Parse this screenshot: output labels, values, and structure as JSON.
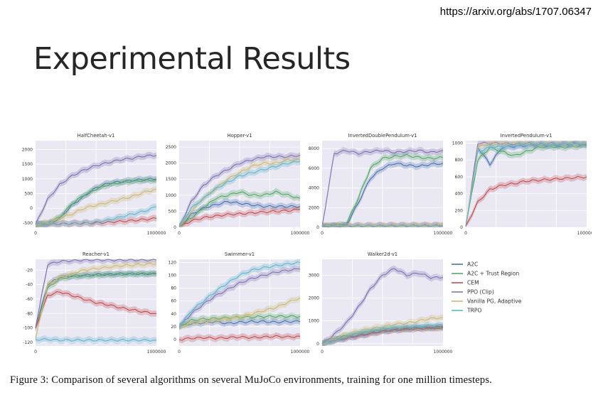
{
  "header": {
    "url": "https://arxiv.org/abs/1707.06347",
    "title": "Experimental Results"
  },
  "caption": {
    "text": "Figure 3: Comparison of several algorithms on several MuJoCo environments, training for one million timesteps."
  },
  "colors": {
    "plot_bg": "#e9e8f3",
    "grid": "#ffffff"
  },
  "chart_data": [
    {
      "type": "line",
      "title": "HalfCheetah-v1",
      "xlim": [
        0,
        1000000
      ],
      "xticks": [
        "0",
        "1000000"
      ],
      "ylim": [
        -650,
        2300
      ],
      "yticks": [
        -500,
        0,
        500,
        1000,
        1500,
        2000
      ],
      "x": [
        0,
        100000,
        200000,
        300000,
        400000,
        500000,
        600000,
        700000,
        800000,
        900000,
        1000000
      ],
      "series": [
        {
          "name": "A2C",
          "values": [
            -550,
            -530,
            -350,
            100,
            400,
            700,
            850,
            900,
            950,
            980,
            990
          ]
        },
        {
          "name": "A2C + Trust Region",
          "values": [
            -550,
            -520,
            -300,
            150,
            450,
            650,
            800,
            870,
            920,
            950,
            960
          ]
        },
        {
          "name": "CEM",
          "values": [
            -550,
            -540,
            -530,
            -520,
            -510,
            -500,
            -480,
            -450,
            -420,
            -380,
            -350
          ]
        },
        {
          "name": "PPO (Clip)",
          "values": [
            -550,
            300,
            800,
            1100,
            1300,
            1450,
            1550,
            1650,
            1700,
            1780,
            1800
          ]
        },
        {
          "name": "Vanilla PG, Adaptive",
          "values": [
            -550,
            -500,
            -350,
            -200,
            0,
            100,
            200,
            300,
            400,
            550,
            650
          ]
        },
        {
          "name": "TRPO",
          "values": [
            -550,
            -540,
            -530,
            -520,
            -500,
            -480,
            -400,
            -300,
            -200,
            -100,
            50
          ]
        }
      ]
    },
    {
      "type": "line",
      "title": "Hopper-v1",
      "xlim": [
        0,
        1000000
      ],
      "xticks": [
        "0",
        "1000000"
      ],
      "ylim": [
        0,
        2700
      ],
      "yticks": [
        0,
        500,
        1000,
        1500,
        2000,
        2500
      ],
      "x": [
        0,
        100000,
        200000,
        300000,
        400000,
        500000,
        600000,
        700000,
        800000,
        900000,
        1000000
      ],
      "series": [
        {
          "name": "A2C",
          "values": [
            20,
            400,
            600,
            700,
            800,
            750,
            700,
            650,
            650,
            650,
            650
          ]
        },
        {
          "name": "A2C + Trust Region",
          "values": [
            20,
            300,
            600,
            900,
            1000,
            1100,
            1000,
            1000,
            1100,
            1000,
            900
          ]
        },
        {
          "name": "CEM",
          "values": [
            20,
            200,
            300,
            350,
            400,
            420,
            450,
            480,
            500,
            520,
            550
          ]
        },
        {
          "name": "PPO (Clip)",
          "values": [
            20,
            800,
            1300,
            1600,
            1800,
            2000,
            2100,
            2200,
            2200,
            2200,
            2250
          ]
        },
        {
          "name": "Vanilla PG, Adaptive",
          "values": [
            20,
            500,
            900,
            1200,
            1500,
            1700,
            1900,
            2000,
            2000,
            2100,
            2100
          ]
        },
        {
          "name": "TRPO",
          "values": [
            20,
            600,
            900,
            1200,
            1400,
            1600,
            1700,
            1800,
            1900,
            2000,
            2050
          ]
        }
      ]
    },
    {
      "type": "line",
      "title": "InvertedDoublePendulum-v1",
      "xlim": [
        0,
        1000000
      ],
      "xticks": [
        "0",
        "1000000"
      ],
      "ylim": [
        0,
        8800
      ],
      "yticks": [
        0,
        2000,
        4000,
        6000,
        8000
      ],
      "x": [
        0,
        100000,
        200000,
        300000,
        400000,
        500000,
        600000,
        700000,
        800000,
        900000,
        1000000
      ],
      "series": [
        {
          "name": "A2C",
          "values": [
            100,
            150,
            200,
            2500,
            5000,
            6000,
            6500,
            6300,
            6200,
            6400,
            6500
          ]
        },
        {
          "name": "A2C + Trust Region",
          "values": [
            100,
            150,
            300,
            3000,
            6000,
            7000,
            7200,
            7300,
            7100,
            7000,
            7100
          ]
        },
        {
          "name": "CEM",
          "values": [
            100,
            150,
            150,
            150,
            160,
            170,
            180,
            180,
            190,
            190,
            200
          ]
        },
        {
          "name": "PPO (Clip)",
          "values": [
            100,
            7500,
            7800,
            7500,
            7700,
            7800,
            7600,
            7700,
            7800,
            7600,
            7800
          ]
        },
        {
          "name": "Vanilla PG, Adaptive",
          "values": [
            100,
            120,
            130,
            140,
            150,
            150,
            160,
            160,
            170,
            170,
            180
          ]
        },
        {
          "name": "TRPO",
          "values": [
            100,
            110,
            120,
            130,
            140,
            140,
            150,
            150,
            150,
            160,
            160
          ]
        }
      ]
    },
    {
      "type": "line",
      "title": "InvertedPendulum-v1",
      "xlim": [
        0,
        1000000
      ],
      "xticks": [
        "0",
        "1000000"
      ],
      "ylim": [
        0,
        1030
      ],
      "yticks": [
        0,
        200,
        400,
        600,
        800,
        1000
      ],
      "x": [
        0,
        100000,
        200000,
        300000,
        400000,
        500000,
        600000,
        700000,
        800000,
        900000,
        1000000
      ],
      "series": [
        {
          "name": "A2C",
          "values": [
            10,
            950,
            750,
            950,
            960,
            970,
            980,
            970,
            980,
            990,
            980
          ]
        },
        {
          "name": "A2C + Trust Region",
          "values": [
            10,
            800,
            950,
            900,
            850,
            900,
            950,
            960,
            950,
            960,
            970
          ]
        },
        {
          "name": "CEM",
          "values": [
            10,
            300,
            450,
            500,
            520,
            550,
            560,
            570,
            580,
            590,
            600
          ]
        },
        {
          "name": "PPO (Clip)",
          "values": [
            10,
            1000,
            1000,
            1000,
            990,
            1000,
            990,
            1000,
            990,
            1000,
            990
          ]
        },
        {
          "name": "Vanilla PG, Adaptive",
          "values": [
            10,
            950,
            1000,
            990,
            1000,
            1000,
            990,
            1000,
            1000,
            990,
            1000
          ]
        },
        {
          "name": "TRPO",
          "values": [
            10,
            900,
            950,
            960,
            970,
            980,
            990,
            980,
            990,
            990,
            1000
          ]
        }
      ]
    },
    {
      "type": "line",
      "title": "Reacher-v1",
      "xlim": [
        0,
        1000000
      ],
      "xticks": [
        "0",
        "1000000"
      ],
      "ylim": [
        -125,
        -5
      ],
      "yticks": [
        -120,
        -100,
        -80,
        -60,
        -40,
        -20
      ],
      "x": [
        0,
        100000,
        200000,
        300000,
        400000,
        500000,
        600000,
        700000,
        800000,
        900000,
        1000000
      ],
      "series": [
        {
          "name": "A2C",
          "values": [
            -100,
            -40,
            -30,
            -28,
            -27,
            -26,
            -26,
            -25,
            -25,
            -25,
            -25
          ]
        },
        {
          "name": "A2C + Trust Region",
          "values": [
            -100,
            -45,
            -32,
            -29,
            -28,
            -27,
            -26,
            -26,
            -25,
            -25,
            -25
          ]
        },
        {
          "name": "CEM",
          "values": [
            -100,
            -55,
            -50,
            -55,
            -60,
            -65,
            -68,
            -72,
            -75,
            -78,
            -80
          ]
        },
        {
          "name": "PPO (Clip)",
          "values": [
            -100,
            -12,
            -8,
            -7,
            -6,
            -6,
            -6,
            -6,
            -6,
            -6,
            -6
          ]
        },
        {
          "name": "Vanilla PG, Adaptive",
          "values": [
            -115,
            -40,
            -30,
            -25,
            -20,
            -18,
            -16,
            -14,
            -13,
            -12,
            -11
          ]
        },
        {
          "name": "TRPO",
          "values": [
            -116,
            -116,
            -117,
            -117,
            -117,
            -117,
            -117,
            -117,
            -117,
            -117,
            -117
          ]
        }
      ]
    },
    {
      "type": "line",
      "title": "Swimmer-v1",
      "xlim": [
        0,
        1000000
      ],
      "xticks": [
        "0",
        "1000000"
      ],
      "ylim": [
        -10,
        125
      ],
      "yticks": [
        0,
        20,
        40,
        60,
        80,
        100,
        120
      ],
      "x": [
        0,
        100000,
        200000,
        300000,
        400000,
        500000,
        600000,
        700000,
        800000,
        900000,
        1000000
      ],
      "series": [
        {
          "name": "A2C",
          "values": [
            20,
            25,
            26,
            28,
            25,
            27,
            28,
            28,
            27,
            28,
            28
          ]
        },
        {
          "name": "A2C + Trust Region",
          "values": [
            20,
            30,
            32,
            33,
            34,
            35,
            35,
            36,
            36,
            36,
            36
          ]
        },
        {
          "name": "CEM",
          "values": [
            0,
            2,
            3,
            2,
            3,
            4,
            3,
            4,
            5,
            4,
            5
          ]
        },
        {
          "name": "PPO (Clip)",
          "values": [
            20,
            40,
            55,
            68,
            78,
            88,
            95,
            100,
            105,
            108,
            110
          ]
        },
        {
          "name": "Vanilla PG, Adaptive",
          "values": [
            20,
            25,
            28,
            30,
            32,
            35,
            40,
            45,
            50,
            58,
            65
          ]
        },
        {
          "name": "TRPO",
          "values": [
            20,
            45,
            60,
            75,
            88,
            100,
            108,
            112,
            115,
            118,
            120
          ]
        }
      ]
    },
    {
      "type": "line",
      "title": "Walker2d-v1",
      "xlim": [
        0,
        1000000
      ],
      "xticks": [
        "0",
        "1000000"
      ],
      "ylim": [
        -100,
        3700
      ],
      "yticks": [
        0,
        1000,
        2000,
        3000
      ],
      "x": [
        0,
        100000,
        200000,
        300000,
        400000,
        500000,
        600000,
        700000,
        800000,
        900000,
        1000000
      ],
      "series": [
        {
          "name": "A2C",
          "values": [
            0,
            150,
            250,
            350,
            450,
            550,
            600,
            650,
            700,
            700,
            750
          ]
        },
        {
          "name": "A2C + Trust Region",
          "values": [
            0,
            200,
            350,
            450,
            550,
            600,
            650,
            650,
            700,
            700,
            700
          ]
        },
        {
          "name": "CEM",
          "values": [
            0,
            150,
            250,
            350,
            450,
            550,
            600,
            650,
            650,
            700,
            700
          ]
        },
        {
          "name": "PPO (Clip)",
          "values": [
            0,
            400,
            900,
            1600,
            2400,
            3000,
            3300,
            3000,
            3100,
            2900,
            2900
          ]
        },
        {
          "name": "Vanilla PG, Adaptive",
          "values": [
            0,
            200,
            400,
            550,
            650,
            750,
            850,
            900,
            1000,
            1100,
            1150
          ]
        },
        {
          "name": "TRPO",
          "values": [
            0,
            150,
            300,
            450,
            550,
            650,
            700,
            750,
            750,
            800,
            800
          ]
        }
      ]
    }
  ],
  "legend": {
    "items": [
      {
        "label": "A2C",
        "color": "#4c72b0"
      },
      {
        "label": "A2C + Trust Region",
        "color": "#55a868"
      },
      {
        "label": "CEM",
        "color": "#c44e52"
      },
      {
        "label": "PPO (Clip)",
        "color": "#8172b2"
      },
      {
        "label": "Vanilla PG, Adaptive",
        "color": "#ccb974"
      },
      {
        "label": "TRPO",
        "color": "#64b5cd"
      }
    ]
  }
}
